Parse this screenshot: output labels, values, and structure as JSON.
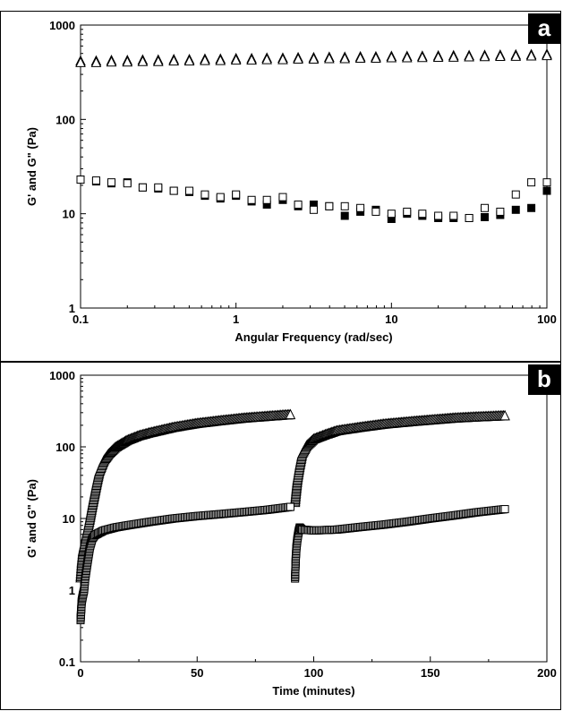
{
  "chart_data": [
    {
      "type": "scatter",
      "panel_label": "a",
      "xlabel": "Angular Frequency (rad/sec)",
      "ylabel": "G' and G\" (Pa)",
      "xscale": "log",
      "yscale": "log",
      "xlim": [
        0.1,
        100
      ],
      "ylim": [
        1,
        1000
      ],
      "x_ticks": [
        "0.1",
        "1",
        "10",
        "100"
      ],
      "y_ticks": [
        "1",
        "10",
        "100",
        "1000"
      ],
      "grid": false,
      "legend": "none",
      "series": [
        {
          "marker": "triangle-filled",
          "x": [
            0.1,
            0.126,
            0.158,
            0.2,
            0.251,
            0.316,
            0.398,
            0.501,
            0.631,
            0.794,
            1,
            1.26,
            1.58,
            2,
            2.51,
            3.16,
            3.98,
            5.01,
            6.31,
            7.94,
            10,
            12.6,
            15.8,
            20,
            25.1,
            31.6,
            39.8,
            50.1,
            63.1,
            79.4,
            100
          ],
          "y": [
            420,
            420,
            425,
            425,
            430,
            430,
            435,
            435,
            440,
            440,
            445,
            445,
            450,
            450,
            455,
            455,
            460,
            460,
            465,
            465,
            470,
            470,
            472,
            475,
            478,
            480,
            482,
            485,
            488,
            490,
            495
          ]
        },
        {
          "marker": "triangle-open",
          "x": [
            0.1,
            0.126,
            0.158,
            0.2,
            0.251,
            0.316,
            0.398,
            0.501,
            0.631,
            0.794,
            1,
            1.26,
            1.58,
            2,
            2.51,
            3.16,
            3.98,
            5.01,
            6.31,
            7.94,
            10,
            12.6,
            15.8,
            20,
            25.1,
            31.6,
            39.8,
            50.1,
            63.1,
            79.4,
            100
          ],
          "y": [
            405,
            405,
            410,
            410,
            415,
            415,
            420,
            420,
            425,
            425,
            430,
            430,
            435,
            435,
            440,
            440,
            445,
            445,
            450,
            450,
            455,
            455,
            458,
            460,
            462,
            465,
            468,
            470,
            472,
            475,
            480
          ]
        },
        {
          "marker": "square-filled",
          "x": [
            0.1,
            0.126,
            0.158,
            0.2,
            0.251,
            0.316,
            0.398,
            0.501,
            0.631,
            0.794,
            1,
            1.26,
            1.58,
            2,
            2.51,
            3.16,
            3.98,
            5.01,
            6.31,
            7.94,
            10,
            12.6,
            15.8,
            20,
            25.1,
            31.6,
            39.8,
            50.1,
            63.1,
            79.4,
            100
          ],
          "y": [
            23,
            22,
            21,
            21.5,
            19,
            18.5,
            17.5,
            17,
            15.5,
            14.5,
            15.5,
            13.5,
            12.5,
            14,
            12,
            12.5,
            12,
            9.5,
            10.5,
            11,
            8.8,
            10,
            9.5,
            9,
            9,
            9,
            9.2,
            9.7,
            11,
            11.5,
            17.5
          ]
        },
        {
          "marker": "square-open",
          "x": [
            0.1,
            0.126,
            0.158,
            0.2,
            0.251,
            0.316,
            0.398,
            0.501,
            0.631,
            0.794,
            1,
            1.26,
            1.58,
            2,
            2.51,
            3.16,
            3.98,
            5.01,
            6.31,
            7.94,
            10,
            12.6,
            15.8,
            20,
            25.1,
            31.6,
            39.8,
            50.1,
            63.1,
            79.4,
            100
          ],
          "y": [
            23,
            22.5,
            21.5,
            21,
            19,
            19,
            17.5,
            17.5,
            16,
            15,
            16,
            14,
            14,
            15,
            12.5,
            11,
            12,
            12,
            11.5,
            10.5,
            10,
            10.5,
            10,
            9.5,
            9.5,
            9,
            11.5,
            10.5,
            16,
            21.5,
            21.5
          ]
        }
      ]
    },
    {
      "type": "scatter",
      "panel_label": "b",
      "xlabel": "Time (minutes)",
      "ylabel": "G' and G\" (Pa)",
      "xscale": "linear",
      "yscale": "log",
      "xlim": [
        0,
        200
      ],
      "ylim": [
        0.1,
        1000
      ],
      "x_ticks": [
        "0",
        "50",
        "100",
        "150",
        "200"
      ],
      "y_ticks": [
        "0.1",
        "1",
        "10",
        "100",
        "1000"
      ],
      "grid": false,
      "legend": "none",
      "curves": [
        {
          "marker": "triangle-open",
          "segments": [
            {
              "points": [
                [
                  0,
                  1.5
                ],
                [
                  0.5,
                  2.5
                ],
                [
                  1,
                  3.5
                ],
                [
                  1.5,
                  4.2
                ],
                [
                  2,
                  5
                ],
                [
                  3,
                  7
                ],
                [
                  4,
                  10
                ],
                [
                  5,
                  15
                ],
                [
                  6,
                  22
                ],
                [
                  7,
                  32
                ],
                [
                  8,
                  45
                ],
                [
                  10,
                  65
                ],
                [
                  12,
                  80
                ],
                [
                  15,
                  100
                ],
                [
                  20,
                  125
                ],
                [
                  25,
                  145
                ],
                [
                  30,
                  160
                ],
                [
                  40,
                  190
                ],
                [
                  50,
                  215
                ],
                [
                  60,
                  235
                ],
                [
                  70,
                  255
                ],
                [
                  80,
                  270
                ],
                [
                  90,
                  285
                ]
              ]
            },
            {
              "points": [
                [
                  92,
                  17
                ],
                [
                  92.5,
                  25
                ],
                [
                  93,
                  35
                ],
                [
                  94,
                  55
                ],
                [
                  95,
                  80
                ],
                [
                  97,
                  105
                ],
                [
                  100,
                  130
                ],
                [
                  105,
                  150
                ],
                [
                  110,
                  170
                ],
                [
                  120,
                  190
                ],
                [
                  130,
                  210
                ],
                [
                  140,
                  225
                ],
                [
                  150,
                  240
                ],
                [
                  160,
                  255
                ],
                [
                  170,
                  265
                ],
                [
                  182,
                  275
                ]
              ]
            }
          ]
        },
        {
          "marker": "square-open",
          "segments": [
            {
              "points": [
                [
                  0,
                  0.38
                ],
                [
                  0.5,
                  0.7
                ],
                [
                  1,
                  0.85
                ],
                [
                  1.5,
                  1.0
                ],
                [
                  2,
                  1.5
                ],
                [
                  3,
                  2.5
                ],
                [
                  4,
                  4
                ],
                [
                  5,
                  5.2
                ],
                [
                  6,
                  5.8
                ],
                [
                  8,
                  6.3
                ],
                [
                  10,
                  6.8
                ],
                [
                  15,
                  7.5
                ],
                [
                  20,
                  8
                ],
                [
                  30,
                  9
                ],
                [
                  40,
                  10
                ],
                [
                  50,
                  10.8
                ],
                [
                  60,
                  11.5
                ],
                [
                  70,
                  12.3
                ],
                [
                  80,
                  13.2
                ],
                [
                  90,
                  14.5
                ]
              ]
            },
            {
              "points": [
                [
                  92,
                  1.45
                ],
                [
                  92.3,
                  2.8
                ],
                [
                  92.6,
                  4
                ],
                [
                  93,
                  5.2
                ],
                [
                  93.5,
                  6.5
                ],
                [
                  94,
                  7.5
                ],
                [
                  95,
                  7
                ],
                [
                  100,
                  6.8
                ],
                [
                  110,
                  7
                ],
                [
                  120,
                  7.6
                ],
                [
                  130,
                  8.2
                ],
                [
                  140,
                  9
                ],
                [
                  150,
                  10
                ],
                [
                  160,
                  11
                ],
                [
                  170,
                  12.2
                ],
                [
                  182,
                  13.5
                ]
              ]
            }
          ]
        }
      ]
    }
  ]
}
